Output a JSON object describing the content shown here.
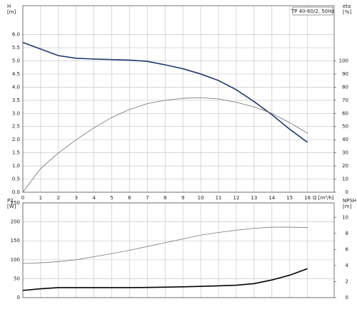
{
  "chart_data": [
    {
      "type": "line",
      "annotation": "TP 40-60/2, 50Hz",
      "y_label": [
        "H",
        "[m]"
      ],
      "y2_label": [
        "eta",
        "[%]"
      ],
      "x_label": "Q [m³/h]",
      "x": [
        0,
        1,
        2,
        3,
        4,
        5,
        6,
        7,
        8,
        9,
        10,
        11,
        12,
        13,
        14,
        15,
        16
      ],
      "xlim": [
        0,
        17.5
      ],
      "xticks": [
        0,
        1,
        2,
        3,
        4,
        5,
        6,
        7,
        8,
        9,
        10,
        11,
        12,
        13,
        14,
        15,
        16
      ],
      "ylim": [
        0,
        7.1
      ],
      "yticks": [
        {
          "value": 0,
          "label": "0.0"
        },
        {
          "value": 0.5,
          "label": "0.5"
        },
        {
          "value": 1,
          "label": "1.0"
        },
        {
          "value": 1.5,
          "label": "1.5"
        },
        {
          "value": 2,
          "label": "2.0"
        },
        {
          "value": 2.5,
          "label": "2.5"
        },
        {
          "value": 3,
          "label": "3.0"
        },
        {
          "value": 3.5,
          "label": "3.5"
        },
        {
          "value": 4,
          "label": "4.0"
        },
        {
          "value": 4.5,
          "label": "4.5"
        },
        {
          "value": 5,
          "label": "5.0"
        },
        {
          "value": 5.5,
          "label": "5.5"
        },
        {
          "value": 6,
          "label": "6.0"
        }
      ],
      "y2lim": [
        0,
        142
      ],
      "y2ticks": [
        0,
        10,
        20,
        30,
        40,
        50,
        60,
        70,
        80,
        90,
        100
      ],
      "grid": true,
      "series": [
        {
          "name": "H",
          "color": "#1f3a6e",
          "line_width": 1.6,
          "values": [
            5.7,
            5.45,
            5.2,
            5.1,
            5.07,
            5.05,
            5.03,
            4.98,
            4.85,
            4.7,
            4.5,
            4.25,
            3.9,
            3.45,
            2.95,
            2.4,
            1.9
          ]
        },
        {
          "name": "eta",
          "color": "#6e6e6e",
          "line_width": 0.8,
          "axis": "y2",
          "values": [
            0,
            18,
            30,
            40,
            49,
            57,
            63,
            67.5,
            70,
            71.5,
            72,
            71,
            68.5,
            65,
            60,
            53,
            45
          ]
        }
      ]
    },
    {
      "type": "line",
      "y_label": [
        "P2",
        "[W]"
      ],
      "y2_label": [
        "NPSH",
        "[m]"
      ],
      "x": [
        0,
        1,
        2,
        3,
        4,
        5,
        6,
        7,
        8,
        9,
        10,
        11,
        12,
        13,
        14,
        15,
        16
      ],
      "xlim": [
        0,
        17.5
      ],
      "ylim": [
        0,
        250
      ],
      "yticks": [
        0,
        50,
        100,
        150,
        200,
        250
      ],
      "y2lim": [
        0,
        11.8
      ],
      "y2ticks": [
        0,
        2,
        4,
        6,
        8,
        10
      ],
      "grid": true,
      "series": [
        {
          "name": "P2",
          "color": "#7a7a7a",
          "line_width": 0.8,
          "values": [
            90,
            92,
            95,
            100,
            108,
            116,
            125,
            135,
            145,
            155,
            165,
            172,
            178,
            183,
            186,
            186,
            185
          ]
        },
        {
          "name": "NPSH",
          "color": "#000000",
          "line_width": 1.6,
          "axis": "y2",
          "values": [
            0.9,
            1.1,
            1.25,
            1.25,
            1.25,
            1.25,
            1.25,
            1.27,
            1.3,
            1.35,
            1.4,
            1.47,
            1.55,
            1.75,
            2.2,
            2.8,
            3.6
          ]
        }
      ]
    }
  ]
}
